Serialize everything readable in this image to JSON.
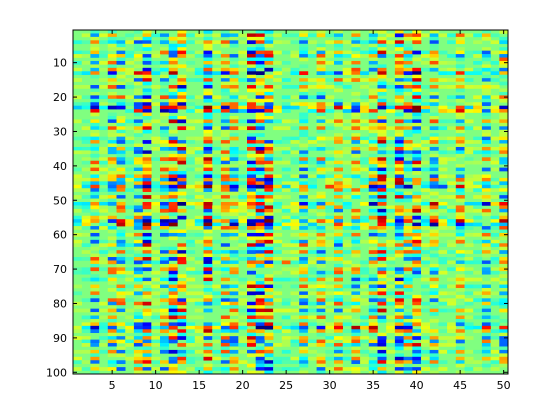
{
  "chart_data": {
    "type": "heatmap",
    "title": "",
    "xlabel": "",
    "ylabel": "",
    "colormap": "jet",
    "n_rows": 100,
    "n_cols": 50,
    "xlim": [
      0.5,
      50.5
    ],
    "ylim": [
      0.5,
      100.5
    ],
    "y_direction": "reverse",
    "grid": false,
    "background_value_color": "#80ff80",
    "x_ticks": [
      5,
      10,
      15,
      20,
      25,
      30,
      35,
      40,
      45,
      50
    ],
    "y_ticks": [
      10,
      20,
      30,
      40,
      50,
      60,
      70,
      80,
      90,
      100
    ],
    "x_tick_labels": [
      "5",
      "10",
      "15",
      "20",
      "25",
      "30",
      "35",
      "40",
      "45",
      "50"
    ],
    "y_tick_labels": [
      "10",
      "20",
      "30",
      "40",
      "50",
      "60",
      "70",
      "80",
      "90",
      "100"
    ],
    "active_columns": [
      3,
      5,
      6,
      8,
      9,
      11,
      12,
      13,
      16,
      18,
      19,
      21,
      22,
      23,
      27,
      29,
      31,
      33,
      35,
      36,
      38,
      39,
      40,
      42,
      45,
      48,
      50
    ],
    "strong_columns": [
      9,
      12,
      13,
      16,
      21,
      22,
      23,
      36,
      38,
      40
    ],
    "active_rows": [
      2,
      4,
      7,
      8,
      10,
      12,
      13,
      15,
      17,
      20,
      22,
      23,
      24,
      27,
      29,
      32,
      33,
      35,
      36,
      38,
      39,
      41,
      43,
      44,
      45,
      46,
      47,
      49,
      51,
      52,
      53,
      55,
      56,
      57,
      58,
      60,
      62,
      63,
      65,
      67,
      68,
      70,
      71,
      73,
      75,
      77,
      79,
      80,
      82,
      84,
      86,
      87,
      88,
      90,
      91,
      92,
      94,
      96,
      97,
      99
    ],
    "strong_rows": [
      13,
      23,
      24,
      46,
      51,
      56,
      57,
      87
    ],
    "notable_cells": [
      {
        "row": 13,
        "col": 9,
        "value": 0.85
      },
      {
        "row": 23,
        "col": 9,
        "value": 0.9
      },
      {
        "row": 24,
        "col": 9,
        "value": 0.1
      },
      {
        "row": 24,
        "col": 12,
        "value": 0.15
      },
      {
        "row": 24,
        "col": 16,
        "value": 0.88
      },
      {
        "row": 24,
        "col": 21,
        "value": 0.12
      },
      {
        "row": 24,
        "col": 22,
        "value": 0.1
      },
      {
        "row": 24,
        "col": 23,
        "value": 0.85
      },
      {
        "row": 46,
        "col": 9,
        "value": 0.05
      },
      {
        "row": 46,
        "col": 12,
        "value": 0.12
      },
      {
        "row": 46,
        "col": 21,
        "value": 0.1
      },
      {
        "row": 46,
        "col": 36,
        "value": 0.15
      },
      {
        "row": 46,
        "col": 43,
        "value": 0.2
      },
      {
        "row": 46,
        "col": 30,
        "value": 0.82
      },
      {
        "row": 51,
        "col": 9,
        "value": 0.85
      },
      {
        "row": 51,
        "col": 12,
        "value": 0.82
      },
      {
        "row": 56,
        "col": 9,
        "value": 0.05
      },
      {
        "row": 56,
        "col": 12,
        "value": 0.1
      },
      {
        "row": 56,
        "col": 16,
        "value": 0.05
      },
      {
        "row": 56,
        "col": 21,
        "value": 0.08
      },
      {
        "row": 56,
        "col": 22,
        "value": 0.1
      },
      {
        "row": 56,
        "col": 38,
        "value": 0.12
      },
      {
        "row": 57,
        "col": 23,
        "value": 0.1
      },
      {
        "row": 58,
        "col": 9,
        "value": 0.82
      },
      {
        "row": 87,
        "col": 9,
        "value": 0.15
      },
      {
        "row": 87,
        "col": 16,
        "value": 0.8
      },
      {
        "row": 68,
        "col": 25,
        "value": 0.78
      },
      {
        "row": 36,
        "col": 40,
        "value": 0.2
      },
      {
        "row": 9,
        "col": 50,
        "value": 0.8
      },
      {
        "row": 15,
        "col": 38,
        "value": 0.25
      },
      {
        "row": 20,
        "col": 50,
        "value": 0.78
      }
    ]
  }
}
